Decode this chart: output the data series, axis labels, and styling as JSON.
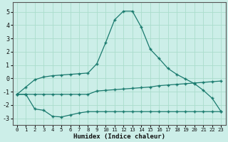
{
  "xlabel": "Humidex (Indice chaleur)",
  "background_color": "#cceee8",
  "grid_color": "#aaddcc",
  "line_color": "#1a7a6e",
  "xlim": [
    -0.5,
    23.5
  ],
  "ylim": [
    -3.5,
    5.7
  ],
  "xticks": [
    0,
    1,
    2,
    3,
    4,
    5,
    6,
    7,
    8,
    9,
    10,
    11,
    12,
    13,
    14,
    15,
    16,
    17,
    18,
    19,
    20,
    21,
    22,
    23
  ],
  "yticks": [
    -3,
    -2,
    -1,
    0,
    1,
    2,
    3,
    4,
    5
  ],
  "curve1_x": [
    0,
    1,
    2,
    3,
    4,
    5,
    6,
    7,
    8,
    9,
    10,
    11,
    12,
    13,
    14,
    15,
    16,
    17,
    18,
    19,
    20,
    21,
    22,
    23
  ],
  "curve1_y": [
    -1.2,
    -0.65,
    -0.1,
    0.1,
    0.2,
    0.25,
    0.3,
    0.35,
    0.4,
    1.1,
    2.7,
    4.4,
    5.05,
    5.05,
    3.85,
    2.2,
    1.5,
    0.75,
    0.3,
    -0.05,
    -0.4,
    -0.9,
    -1.5,
    -2.5
  ],
  "curve2_x": [
    0,
    1,
    2,
    3,
    4,
    5,
    6,
    7,
    8,
    9,
    10,
    11,
    12,
    13,
    14,
    15,
    16,
    17,
    18,
    19,
    20,
    21,
    22,
    23
  ],
  "curve2_y": [
    -1.2,
    -1.2,
    -1.2,
    -1.2,
    -1.2,
    -1.2,
    -1.2,
    -1.2,
    -1.2,
    -0.95,
    -0.9,
    -0.85,
    -0.8,
    -0.75,
    -0.7,
    -0.65,
    -0.55,
    -0.5,
    -0.45,
    -0.4,
    -0.35,
    -0.3,
    -0.25,
    -0.2
  ],
  "curve3_x": [
    0,
    1,
    2,
    3,
    4,
    5,
    6,
    7,
    8,
    9,
    10,
    11,
    12,
    13,
    14,
    15,
    16,
    17,
    18,
    19,
    20,
    21,
    22,
    23
  ],
  "curve3_y": [
    -1.2,
    -1.2,
    -2.3,
    -2.4,
    -2.85,
    -2.9,
    -2.75,
    -2.6,
    -2.5,
    -2.5,
    -2.5,
    -2.5,
    -2.5,
    -2.5,
    -2.5,
    -2.5,
    -2.5,
    -2.5,
    -2.5,
    -2.5,
    -2.5,
    -2.5,
    -2.5,
    -2.5
  ]
}
